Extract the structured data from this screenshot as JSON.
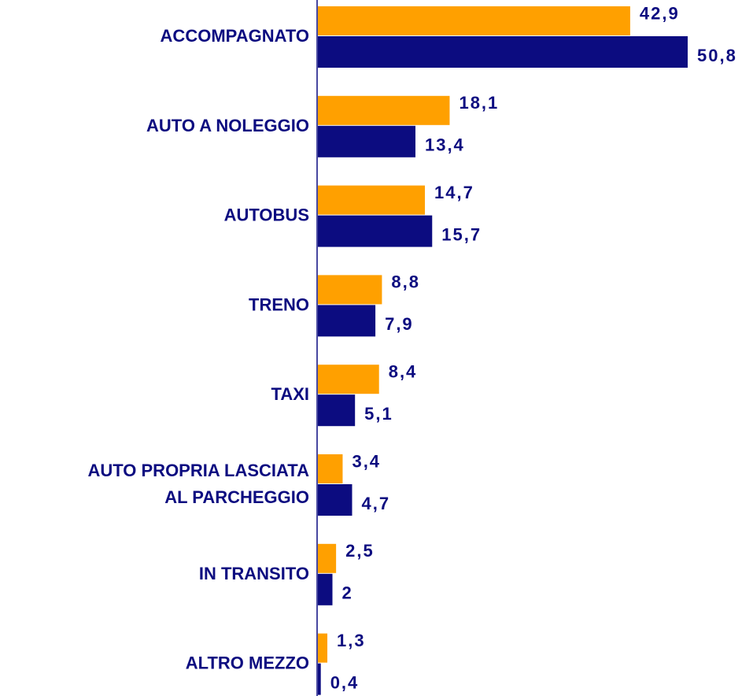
{
  "chart_data": {
    "type": "bar",
    "orientation": "horizontal",
    "categories": [
      "ACCOMPAGNATO",
      "AUTO A NOLEGGIO",
      "AUTOBUS",
      "TRENO",
      "TAXI",
      "AUTO PROPRIA LASCIATA\nAL PARCHEGGIO",
      "IN TRANSITO",
      "ALTRO MEZZO"
    ],
    "series": [
      {
        "color": "#ffa000",
        "values": [
          42.9,
          18.1,
          14.7,
          8.8,
          8.4,
          3.4,
          2.5,
          1.3
        ],
        "value_labels": [
          "42,9",
          "18,1",
          "14,7",
          "8,8",
          "8,4",
          "3,4",
          "2,5",
          "1,3"
        ]
      },
      {
        "color": "#0c0c80",
        "values": [
          50.8,
          13.4,
          15.7,
          7.9,
          5.1,
          4.7,
          2,
          0.4
        ],
        "value_labels": [
          "50,8",
          "13,4",
          "15,7",
          "7,9",
          "5,1",
          "4,7",
          "2",
          "0,4"
        ]
      }
    ]
  }
}
